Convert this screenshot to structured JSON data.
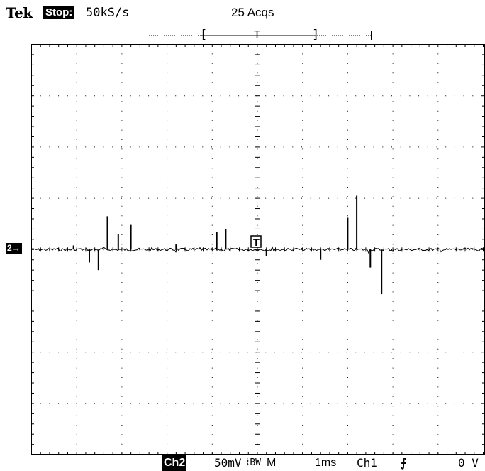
{
  "header": {
    "brand": "Tek",
    "acq_state": "Stop:",
    "sample_rate": "50kS/s",
    "acquisitions": "25 Acqs"
  },
  "record_bar": {
    "left_bracket": "[",
    "trigger_mark": "T",
    "right_bracket": "]"
  },
  "screen": {
    "channel_marker": "2→",
    "trigger_marker": "T"
  },
  "bottom": {
    "channel": "Ch2",
    "volts_div": "50mV",
    "bw_limit": "⌇BW",
    "mode": "M",
    "time_div": "1ms",
    "trigger_source": "Ch1",
    "trigger_slope": "⨍",
    "trigger_level": "0 V"
  },
  "colors": {
    "background": "#ffffff",
    "trace": "#000000",
    "grid": "#000000"
  },
  "trace": {
    "units": "divisions",
    "spikes": [
      {
        "t": 0.93,
        "v": 0.08
      },
      {
        "t": 1.28,
        "v": -0.25
      },
      {
        "t": 1.48,
        "v": -0.4
      },
      {
        "t": 1.68,
        "v": 0.65
      },
      {
        "t": 1.92,
        "v": 0.3
      },
      {
        "t": 2.2,
        "v": 0.48
      },
      {
        "t": 3.2,
        "v": 0.1
      },
      {
        "t": 4.1,
        "v": 0.35
      },
      {
        "t": 4.3,
        "v": 0.4
      },
      {
        "t": 5.2,
        "v": -0.12
      },
      {
        "t": 6.4,
        "v": -0.2
      },
      {
        "t": 7.0,
        "v": 0.62
      },
      {
        "t": 7.2,
        "v": 1.05
      },
      {
        "t": 7.5,
        "v": -0.35
      },
      {
        "t": 7.75,
        "v": -0.87
      }
    ]
  }
}
